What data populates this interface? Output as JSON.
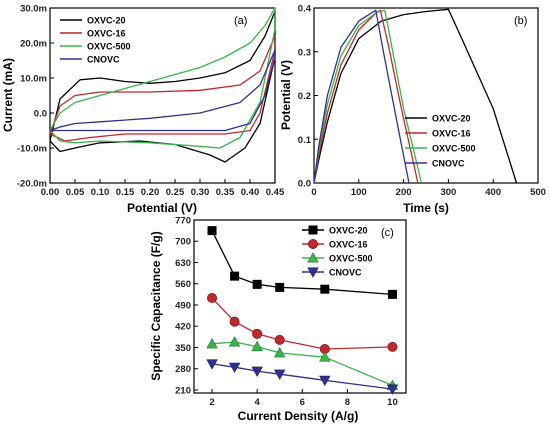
{
  "chart_data": [
    {
      "panel_label": "(a)",
      "type": "line",
      "xlabel": "Potential (V)",
      "ylabel": "Current (mA)",
      "xlim": [
        0.0,
        0.45
      ],
      "ylim": [
        -20,
        30
      ],
      "xticks": [
        "0.00",
        "0.05",
        "0.10",
        "0.15",
        "0.20",
        "0.25",
        "0.30",
        "0.35",
        "0.40",
        "0.45"
      ],
      "yticks": [
        "-20.0m",
        "-10.0m",
        "0.0",
        "10.0m",
        "20.0m",
        "30.0m"
      ],
      "legend_position": "top-left",
      "series": [
        {
          "name": "OXVC-20",
          "color": "#000000",
          "upper": [
            [
              0.0,
              -8
            ],
            [
              0.02,
              4
            ],
            [
              0.06,
              9.5
            ],
            [
              0.1,
              10
            ],
            [
              0.15,
              9
            ],
            [
              0.2,
              8.5
            ],
            [
              0.25,
              9
            ],
            [
              0.3,
              10
            ],
            [
              0.35,
              11.5
            ],
            [
              0.4,
              15
            ],
            [
              0.43,
              22
            ],
            [
              0.45,
              29
            ]
          ],
          "lower": [
            [
              0.45,
              16
            ],
            [
              0.42,
              -3
            ],
            [
              0.39,
              -10
            ],
            [
              0.35,
              -14
            ],
            [
              0.32,
              -12
            ],
            [
              0.25,
              -9
            ],
            [
              0.18,
              -8
            ],
            [
              0.1,
              -8.5
            ],
            [
              0.05,
              -10
            ],
            [
              0.02,
              -11
            ],
            [
              0.0,
              -8
            ]
          ]
        },
        {
          "name": "OXVC-16",
          "color": "#c1272d",
          "upper": [
            [
              0.0,
              -6
            ],
            [
              0.02,
              2
            ],
            [
              0.05,
              5
            ],
            [
              0.1,
              6
            ],
            [
              0.2,
              6
            ],
            [
              0.3,
              6.5
            ],
            [
              0.38,
              8
            ],
            [
              0.42,
              12
            ],
            [
              0.45,
              22
            ]
          ],
          "lower": [
            [
              0.45,
              18
            ],
            [
              0.42,
              0
            ],
            [
              0.4,
              -5
            ],
            [
              0.35,
              -6
            ],
            [
              0.25,
              -6
            ],
            [
              0.15,
              -6
            ],
            [
              0.08,
              -7
            ],
            [
              0.03,
              -8
            ],
            [
              0.0,
              -6
            ]
          ]
        },
        {
          "name": "OXVC-500",
          "color": "#39b54a",
          "upper": [
            [
              0.0,
              -5
            ],
            [
              0.02,
              0
            ],
            [
              0.05,
              3
            ],
            [
              0.1,
              5
            ],
            [
              0.15,
              7
            ],
            [
              0.2,
              9
            ],
            [
              0.25,
              11
            ],
            [
              0.3,
              13
            ],
            [
              0.35,
              16
            ],
            [
              0.4,
              20
            ],
            [
              0.43,
              25
            ],
            [
              0.45,
              30
            ]
          ],
          "lower": [
            [
              0.45,
              24
            ],
            [
              0.42,
              3
            ],
            [
              0.38,
              -7
            ],
            [
              0.34,
              -10
            ],
            [
              0.3,
              -9.5
            ],
            [
              0.2,
              -8.5
            ],
            [
              0.1,
              -8
            ],
            [
              0.05,
              -8.5
            ],
            [
              0.02,
              -8
            ],
            [
              0.0,
              -5
            ]
          ]
        },
        {
          "name": "CNOVC",
          "color": "#2e3192",
          "upper": [
            [
              0.0,
              -5
            ],
            [
              0.02,
              -4
            ],
            [
              0.05,
              -3
            ],
            [
              0.1,
              -2.5
            ],
            [
              0.2,
              -1.5
            ],
            [
              0.3,
              0
            ],
            [
              0.38,
              3
            ],
            [
              0.42,
              8
            ],
            [
              0.45,
              18
            ]
          ],
          "lower": [
            [
              0.45,
              16
            ],
            [
              0.43,
              5
            ],
            [
              0.4,
              -3
            ],
            [
              0.35,
              -5
            ],
            [
              0.25,
              -5
            ],
            [
              0.15,
              -5
            ],
            [
              0.08,
              -5
            ],
            [
              0.03,
              -5
            ],
            [
              0.0,
              -5
            ]
          ]
        }
      ]
    },
    {
      "panel_label": "(b)",
      "type": "line",
      "xlabel": "Time (s)",
      "ylabel": "Potential (V)",
      "xlim": [
        0,
        500
      ],
      "ylim": [
        0.0,
        0.4
      ],
      "xticks": [
        "0",
        "100",
        "200",
        "300",
        "400",
        "500"
      ],
      "yticks": [
        "0.0",
        "0.1",
        "0.2",
        "0.3",
        "0.4"
      ],
      "legend_position": "bottom-right",
      "series": [
        {
          "name": "OXVC-20",
          "color": "#000000",
          "points": [
            [
              0,
              0.0
            ],
            [
              10,
              0.05
            ],
            [
              30,
              0.14
            ],
            [
              60,
              0.25
            ],
            [
              100,
              0.33
            ],
            [
              150,
              0.37
            ],
            [
              200,
              0.385
            ],
            [
              250,
              0.392
            ],
            [
              300,
              0.397
            ],
            [
              330,
              0.33
            ],
            [
              400,
              0.17
            ],
            [
              452,
              0.0
            ]
          ]
        },
        {
          "name": "OXVC-16",
          "color": "#c1272d",
          "points": [
            [
              0,
              0.0
            ],
            [
              10,
              0.06
            ],
            [
              30,
              0.16
            ],
            [
              60,
              0.27
            ],
            [
              100,
              0.35
            ],
            [
              140,
              0.39
            ],
            [
              148,
              0.395
            ],
            [
              165,
              0.32
            ],
            [
              195,
              0.17
            ],
            [
              232,
              0.0
            ]
          ]
        },
        {
          "name": "OXVC-500",
          "color": "#39b54a",
          "points": [
            [
              0,
              0.0
            ],
            [
              10,
              0.07
            ],
            [
              30,
              0.18
            ],
            [
              60,
              0.29
            ],
            [
              100,
              0.36
            ],
            [
              140,
              0.39
            ],
            [
              158,
              0.395
            ],
            [
              172,
              0.32
            ],
            [
              200,
              0.17
            ],
            [
              240,
              0.0
            ]
          ]
        },
        {
          "name": "CNOVC",
          "color": "#2e3192",
          "points": [
            [
              0,
              0.0
            ],
            [
              10,
              0.08
            ],
            [
              30,
              0.2
            ],
            [
              60,
              0.31
            ],
            [
              100,
              0.37
            ],
            [
              130,
              0.39
            ],
            [
              138,
              0.395
            ],
            [
              155,
              0.3
            ],
            [
              185,
              0.14
            ],
            [
              212,
              0.0
            ]
          ]
        }
      ]
    },
    {
      "panel_label": "(c)",
      "type": "line",
      "xlabel": "Current Density (A/g)",
      "ylabel": "Specific Capacitance (F/g)",
      "xlim": [
        1.2,
        10.6
      ],
      "ylim": [
        200,
        770
      ],
      "xticks": [
        "2",
        "4",
        "6",
        "8",
        "10"
      ],
      "yticks": [
        "210",
        "280",
        "350",
        "420",
        "490",
        "560",
        "630",
        "700",
        "770"
      ],
      "legend_position": "top-right",
      "x": [
        2,
        3,
        4,
        5,
        7,
        10
      ],
      "series": [
        {
          "name": "OXVC-20",
          "color": "#000000",
          "marker": "square",
          "values": [
            735,
            585,
            558,
            548,
            542,
            525
          ]
        },
        {
          "name": "OXVC-16",
          "color": "#c1272d",
          "marker": "circle",
          "values": [
            513,
            435,
            395,
            375,
            345,
            352
          ]
        },
        {
          "name": "OXVC-500",
          "color": "#39b54a",
          "marker": "triangle-up",
          "values": [
            362,
            368,
            353,
            332,
            318,
            225
          ]
        },
        {
          "name": "CNOVC",
          "color": "#2e3192",
          "marker": "triangle-down",
          "values": [
            296,
            285,
            272,
            262,
            242,
            213
          ]
        }
      ]
    }
  ]
}
